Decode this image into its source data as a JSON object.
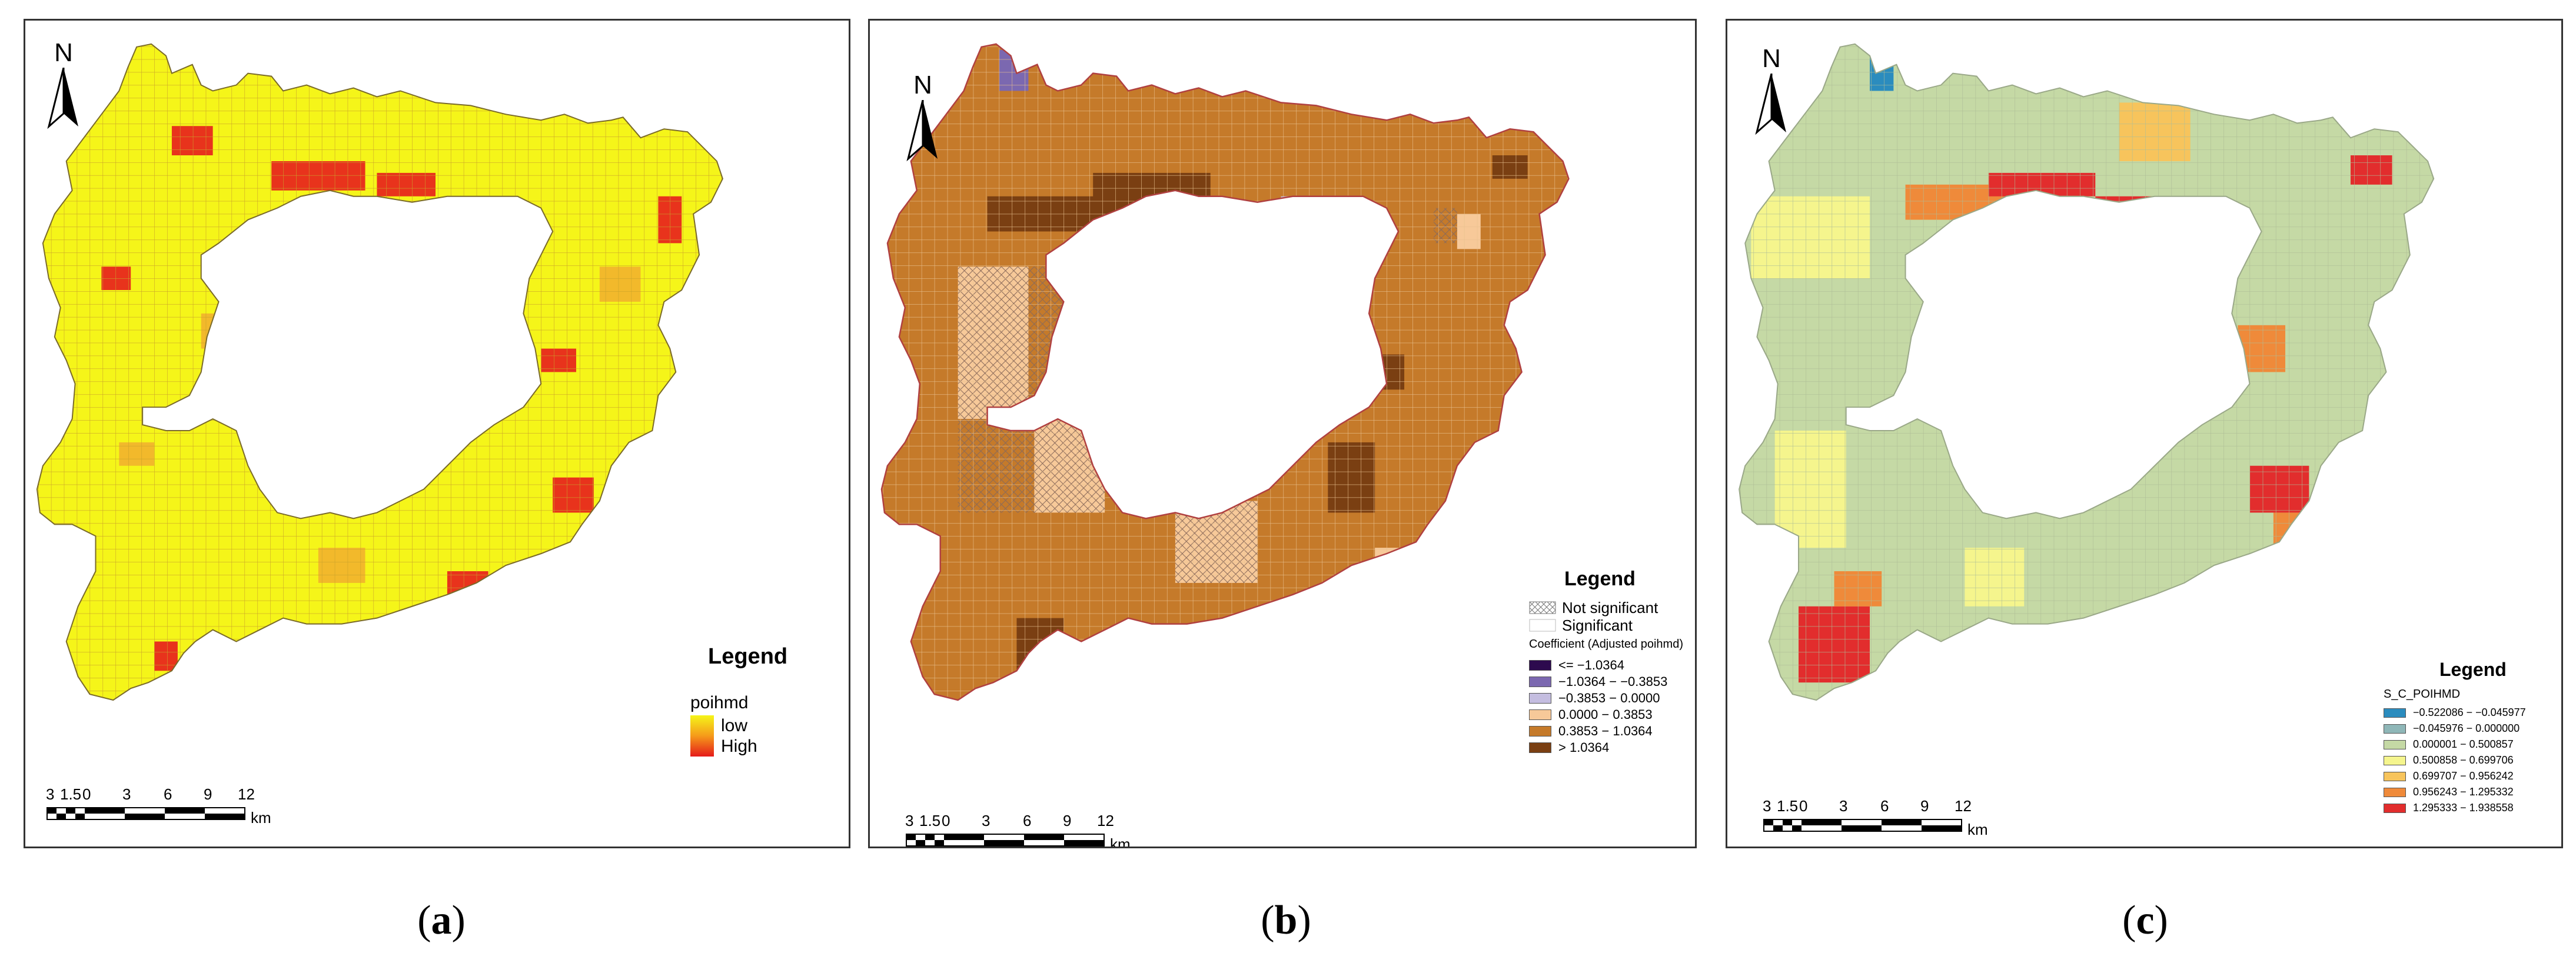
{
  "panels": [
    {
      "id": "a",
      "caption_letter": "a",
      "north_label": "N",
      "scale": {
        "ticks": [
          "3",
          "1.5",
          "0",
          "3",
          "6",
          "9",
          "12"
        ],
        "unit": "km"
      },
      "legend": {
        "title": "Legend",
        "field": "poihmd",
        "entries": [
          {
            "label": "low",
            "color": "#f5f519"
          },
          {
            "label": "High",
            "color": "#e51a1a"
          }
        ]
      },
      "colors": {
        "fill": "#f5f519",
        "mid": "#f2b92b",
        "high": "#e8331c",
        "grid": "#d7a82a",
        "outline": "#7a6a2a"
      }
    },
    {
      "id": "b",
      "caption_letter": "b",
      "north_label": "N",
      "scale": {
        "ticks": [
          "3",
          "1.5",
          "0",
          "3",
          "6",
          "9",
          "12"
        ],
        "unit": "km"
      },
      "legend": {
        "title": "Legend",
        "significance": [
          {
            "label": "Not significant",
            "pattern": "hatch"
          },
          {
            "label": "Significant",
            "pattern": "blank"
          }
        ],
        "field": "Coefficient (Adjusted poihmd)",
        "entries": [
          {
            "label": "<= −1.0364",
            "color": "#2d0a4e"
          },
          {
            "label": "−1.0364 − −0.3853",
            "color": "#7b68b0"
          },
          {
            "label": "−0.3853 − 0.0000",
            "color": "#c4bde0"
          },
          {
            "label": "0.0000 − 0.3853",
            "color": "#f7c999"
          },
          {
            "label": "0.3853 − 1.0364",
            "color": "#c57a2a"
          },
          {
            "label": "> 1.0364",
            "color": "#7a3f12"
          }
        ]
      },
      "colors": {
        "fill": "#c57a2a",
        "light": "#f7c999",
        "dark": "#7a3f12",
        "purple": "#7b68b0",
        "grid": "#e0b884",
        "outline": "#b04040"
      }
    },
    {
      "id": "c",
      "caption_letter": "c",
      "north_label": "N",
      "scale": {
        "ticks": [
          "3",
          "1.5",
          "0",
          "3",
          "6",
          "9",
          "12"
        ],
        "unit": "km"
      },
      "legend": {
        "title": "Legend",
        "field": "S_C_POIHMD",
        "entries": [
          {
            "label": "−0.522086 − −0.045977",
            "color": "#2b8cbe"
          },
          {
            "label": "−0.045976 − 0.000000",
            "color": "#8fb7b8"
          },
          {
            "label": "0.000001 − 0.500857",
            "color": "#c5d9a5"
          },
          {
            "label": "0.500858 − 0.699706",
            "color": "#f5f58d"
          },
          {
            "label": "0.699707 − 0.956242",
            "color": "#f7c45c"
          },
          {
            "label": "0.956243 − 1.295332",
            "color": "#ef8a3a"
          },
          {
            "label": "1.295333 − 1.938558",
            "color": "#e22d2d"
          }
        ]
      },
      "colors": {
        "fill": "#c5d9a5",
        "yellow": "#f5f58d",
        "orange": "#f7c45c",
        "dorange": "#ef8a3a",
        "red": "#e22d2d",
        "blue": "#2b8cbe",
        "grid": "#b8c8a0",
        "outline": "#9aa888"
      }
    }
  ]
}
